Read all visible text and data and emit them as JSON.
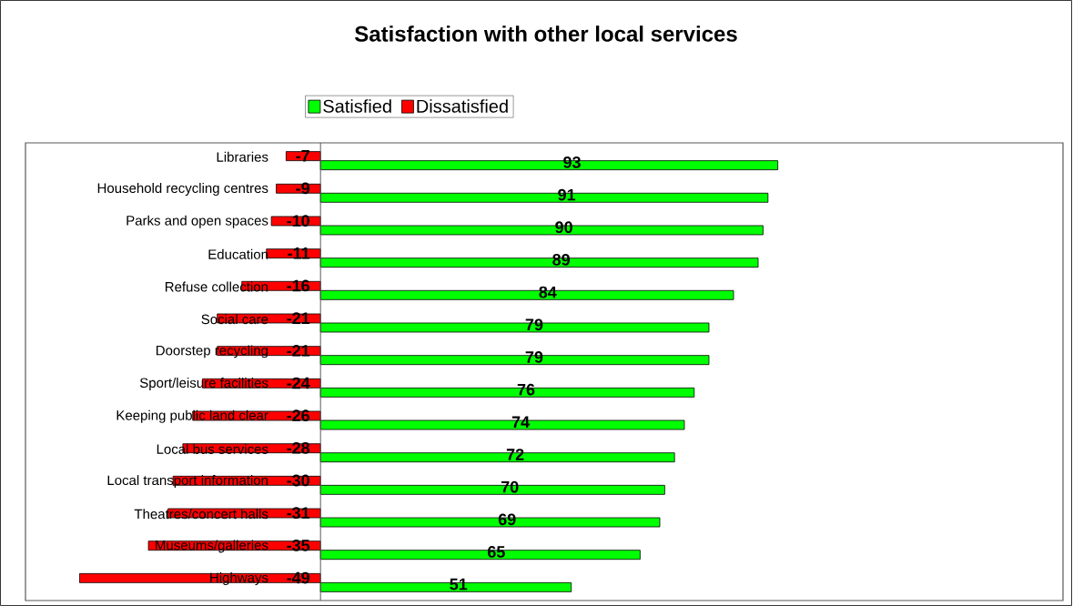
{
  "chart_data": {
    "type": "bar",
    "orientation": "horizontal",
    "title": "Satisfaction with other local services",
    "categories": [
      "Libraries",
      "Household recycling centres",
      "Parks and open spaces",
      "Education",
      "Refuse collection",
      "Social care",
      "Doorstep recycling",
      "Sport/leisure facilities",
      "Keeping public land clear",
      "Local bus services",
      "Local transport information",
      "Theatres/concert halls",
      "Museums/galleries",
      "Highways"
    ],
    "series": [
      {
        "name": "Satisfied",
        "color": "#00ff00",
        "values": [
          93,
          91,
          90,
          89,
          84,
          79,
          79,
          76,
          74,
          72,
          70,
          69,
          65,
          51
        ],
        "value_labels": [
          "93",
          "91",
          "90",
          "89",
          "84",
          "79",
          "79",
          "76",
          "74",
          "72",
          "70",
          "69",
          "65",
          "51"
        ]
      },
      {
        "name": "Dissatisfied",
        "color": "#ff0000",
        "values": [
          -7,
          -9,
          -10,
          -11,
          -16,
          -21,
          -21,
          -24,
          -26,
          -28,
          -30,
          -31,
          -35,
          -49
        ],
        "value_labels": [
          "-7",
          "-9",
          "-10",
          "-11",
          "-16",
          "-21",
          "-21",
          "-24",
          "-26",
          "-28",
          "-30",
          "-31",
          "-35",
          "-49"
        ]
      }
    ],
    "xlim": [
      -60,
      151
    ],
    "legend": "top"
  }
}
